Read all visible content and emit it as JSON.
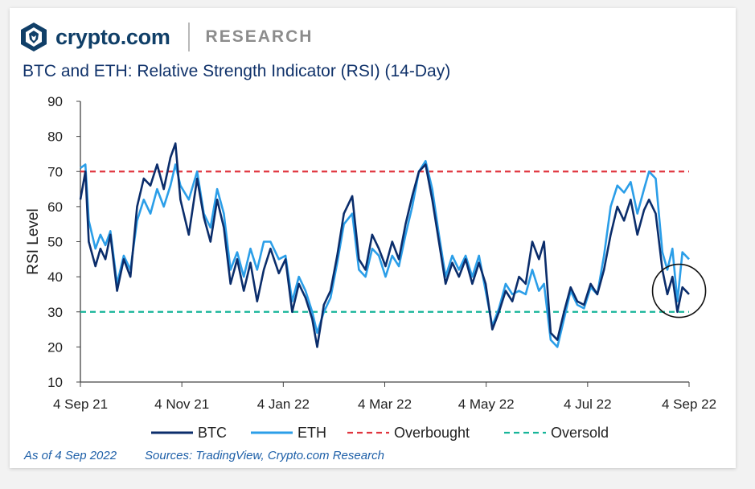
{
  "header": {
    "brand": "crypto.com",
    "section": "RESEARCH",
    "logo_icon": "crypto-com-lion-logo-icon"
  },
  "chart_data": {
    "type": "line",
    "title": "BTC and ETH: Relative Strength Indicator (RSI) (14-Day)",
    "ylabel": "RSI Level",
    "xlabel": "",
    "ylim": [
      10,
      90
    ],
    "yticks": [
      10,
      20,
      30,
      40,
      50,
      60,
      70,
      80,
      90
    ],
    "xticks": [
      "4 Sep 21",
      "4 Nov 21",
      "4 Jan 22",
      "4 Mar 22",
      "4 May 22",
      "4 Jul 22",
      "4 Sep 22"
    ],
    "x_start": "2021-09-04",
    "x_end": "2022-09-04",
    "grid": false,
    "legend_position": "bottom",
    "colors": {
      "btc": "#0b2d6b",
      "eth": "#2b9ee8",
      "overbought": "#e0353f",
      "oversold": "#17b59a",
      "axis": "#444444"
    },
    "series": [
      {
        "name": "BTC",
        "style": "solid",
        "points": [
          [
            "2021-09-04",
            62
          ],
          [
            "2021-09-07",
            70
          ],
          [
            "2021-09-09",
            50
          ],
          [
            "2021-09-13",
            43
          ],
          [
            "2021-09-16",
            48
          ],
          [
            "2021-09-19",
            45
          ],
          [
            "2021-09-22",
            52
          ],
          [
            "2021-09-26",
            36
          ],
          [
            "2021-09-30",
            45
          ],
          [
            "2021-10-04",
            40
          ],
          [
            "2021-10-08",
            60
          ],
          [
            "2021-10-12",
            68
          ],
          [
            "2021-10-16",
            66
          ],
          [
            "2021-10-20",
            72
          ],
          [
            "2021-10-24",
            65
          ],
          [
            "2021-10-28",
            74
          ],
          [
            "2021-10-31",
            78
          ],
          [
            "2021-11-03",
            62
          ],
          [
            "2021-11-08",
            52
          ],
          [
            "2021-11-13",
            68
          ],
          [
            "2021-11-17",
            57
          ],
          [
            "2021-11-21",
            50
          ],
          [
            "2021-11-25",
            62
          ],
          [
            "2021-11-29",
            54
          ],
          [
            "2021-12-03",
            38
          ],
          [
            "2021-12-07",
            45
          ],
          [
            "2021-12-11",
            36
          ],
          [
            "2021-12-15",
            44
          ],
          [
            "2021-12-19",
            33
          ],
          [
            "2021-12-23",
            42
          ],
          [
            "2021-12-27",
            48
          ],
          [
            "2022-01-01",
            41
          ],
          [
            "2022-01-05",
            45
          ],
          [
            "2022-01-09",
            30
          ],
          [
            "2022-01-13",
            38
          ],
          [
            "2022-01-17",
            34
          ],
          [
            "2022-01-21",
            28
          ],
          [
            "2022-01-24",
            20
          ],
          [
            "2022-01-28",
            32
          ],
          [
            "2022-02-01",
            36
          ],
          [
            "2022-02-05",
            46
          ],
          [
            "2022-02-09",
            58
          ],
          [
            "2022-02-14",
            63
          ],
          [
            "2022-02-18",
            45
          ],
          [
            "2022-02-22",
            42
          ],
          [
            "2022-02-26",
            52
          ],
          [
            "2022-03-02",
            48
          ],
          [
            "2022-03-06",
            43
          ],
          [
            "2022-03-10",
            50
          ],
          [
            "2022-03-14",
            45
          ],
          [
            "2022-03-18",
            55
          ],
          [
            "2022-03-22",
            63
          ],
          [
            "2022-03-26",
            70
          ],
          [
            "2022-03-30",
            72
          ],
          [
            "2022-04-03",
            62
          ],
          [
            "2022-04-07",
            50
          ],
          [
            "2022-04-11",
            38
          ],
          [
            "2022-04-15",
            44
          ],
          [
            "2022-04-19",
            40
          ],
          [
            "2022-04-23",
            45
          ],
          [
            "2022-04-27",
            38
          ],
          [
            "2022-05-01",
            44
          ],
          [
            "2022-05-05",
            38
          ],
          [
            "2022-05-09",
            25
          ],
          [
            "2022-05-13",
            30
          ],
          [
            "2022-05-17",
            36
          ],
          [
            "2022-05-21",
            33
          ],
          [
            "2022-05-25",
            40
          ],
          [
            "2022-05-29",
            38
          ],
          [
            "2022-06-02",
            50
          ],
          [
            "2022-06-06",
            45
          ],
          [
            "2022-06-09",
            50
          ],
          [
            "2022-06-13",
            24
          ],
          [
            "2022-06-17",
            22
          ],
          [
            "2022-06-21",
            30
          ],
          [
            "2022-06-25",
            37
          ],
          [
            "2022-06-29",
            33
          ],
          [
            "2022-07-03",
            32
          ],
          [
            "2022-07-07",
            38
          ],
          [
            "2022-07-11",
            35
          ],
          [
            "2022-07-15",
            42
          ],
          [
            "2022-07-19",
            52
          ],
          [
            "2022-07-23",
            60
          ],
          [
            "2022-07-27",
            56
          ],
          [
            "2022-07-31",
            62
          ],
          [
            "2022-08-04",
            52
          ],
          [
            "2022-08-08",
            59
          ],
          [
            "2022-08-11",
            62
          ],
          [
            "2022-08-15",
            58
          ],
          [
            "2022-08-19",
            42
          ],
          [
            "2022-08-22",
            35
          ],
          [
            "2022-08-25",
            40
          ],
          [
            "2022-08-28",
            30
          ],
          [
            "2022-08-31",
            37
          ],
          [
            "2022-09-04",
            35
          ]
        ]
      },
      {
        "name": "ETH",
        "style": "solid",
        "points": [
          [
            "2021-09-04",
            71
          ],
          [
            "2021-09-07",
            72
          ],
          [
            "2021-09-09",
            56
          ],
          [
            "2021-09-13",
            48
          ],
          [
            "2021-09-16",
            52
          ],
          [
            "2021-09-19",
            49
          ],
          [
            "2021-09-22",
            53
          ],
          [
            "2021-09-26",
            38
          ],
          [
            "2021-09-30",
            46
          ],
          [
            "2021-10-04",
            42
          ],
          [
            "2021-10-08",
            56
          ],
          [
            "2021-10-12",
            62
          ],
          [
            "2021-10-16",
            58
          ],
          [
            "2021-10-20",
            65
          ],
          [
            "2021-10-24",
            60
          ],
          [
            "2021-10-28",
            66
          ],
          [
            "2021-10-31",
            72
          ],
          [
            "2021-11-03",
            66
          ],
          [
            "2021-11-08",
            62
          ],
          [
            "2021-11-13",
            70
          ],
          [
            "2021-11-17",
            58
          ],
          [
            "2021-11-21",
            54
          ],
          [
            "2021-11-25",
            65
          ],
          [
            "2021-11-29",
            58
          ],
          [
            "2021-12-03",
            42
          ],
          [
            "2021-12-07",
            47
          ],
          [
            "2021-12-11",
            40
          ],
          [
            "2021-12-15",
            48
          ],
          [
            "2021-12-19",
            42
          ],
          [
            "2021-12-23",
            50
          ],
          [
            "2021-12-27",
            50
          ],
          [
            "2022-01-01",
            45
          ],
          [
            "2022-01-05",
            46
          ],
          [
            "2022-01-09",
            33
          ],
          [
            "2022-01-13",
            40
          ],
          [
            "2022-01-17",
            36
          ],
          [
            "2022-01-21",
            30
          ],
          [
            "2022-01-24",
            24
          ],
          [
            "2022-01-28",
            30
          ],
          [
            "2022-02-01",
            34
          ],
          [
            "2022-02-05",
            44
          ],
          [
            "2022-02-09",
            55
          ],
          [
            "2022-02-14",
            58
          ],
          [
            "2022-02-18",
            42
          ],
          [
            "2022-02-22",
            40
          ],
          [
            "2022-02-26",
            48
          ],
          [
            "2022-03-02",
            46
          ],
          [
            "2022-03-06",
            40
          ],
          [
            "2022-03-10",
            46
          ],
          [
            "2022-03-14",
            43
          ],
          [
            "2022-03-18",
            52
          ],
          [
            "2022-03-22",
            60
          ],
          [
            "2022-03-26",
            70
          ],
          [
            "2022-03-30",
            73
          ],
          [
            "2022-04-03",
            65
          ],
          [
            "2022-04-07",
            52
          ],
          [
            "2022-04-11",
            40
          ],
          [
            "2022-04-15",
            46
          ],
          [
            "2022-04-19",
            42
          ],
          [
            "2022-04-23",
            46
          ],
          [
            "2022-04-27",
            40
          ],
          [
            "2022-05-01",
            46
          ],
          [
            "2022-05-05",
            36
          ],
          [
            "2022-05-09",
            26
          ],
          [
            "2022-05-13",
            31
          ],
          [
            "2022-05-17",
            38
          ],
          [
            "2022-05-21",
            35
          ],
          [
            "2022-05-25",
            36
          ],
          [
            "2022-05-29",
            35
          ],
          [
            "2022-06-02",
            42
          ],
          [
            "2022-06-06",
            36
          ],
          [
            "2022-06-09",
            38
          ],
          [
            "2022-06-13",
            22
          ],
          [
            "2022-06-17",
            20
          ],
          [
            "2022-06-21",
            28
          ],
          [
            "2022-06-25",
            36
          ],
          [
            "2022-06-29",
            32
          ],
          [
            "2022-07-03",
            31
          ],
          [
            "2022-07-07",
            37
          ],
          [
            "2022-07-11",
            35
          ],
          [
            "2022-07-15",
            46
          ],
          [
            "2022-07-19",
            60
          ],
          [
            "2022-07-23",
            66
          ],
          [
            "2022-07-27",
            64
          ],
          [
            "2022-07-31",
            67
          ],
          [
            "2022-08-04",
            58
          ],
          [
            "2022-08-08",
            65
          ],
          [
            "2022-08-11",
            70
          ],
          [
            "2022-08-15",
            68
          ],
          [
            "2022-08-19",
            47
          ],
          [
            "2022-08-22",
            42
          ],
          [
            "2022-08-25",
            48
          ],
          [
            "2022-08-28",
            33
          ],
          [
            "2022-08-31",
            47
          ],
          [
            "2022-09-04",
            45
          ]
        ]
      },
      {
        "name": "Overbought",
        "style": "dashed",
        "value": 70
      },
      {
        "name": "Oversold",
        "style": "dashed",
        "value": 30
      }
    ],
    "annotations": [
      {
        "type": "circle",
        "label": "",
        "x": "2022-08-29",
        "y": 36
      }
    ]
  },
  "footer": {
    "date": "As of 4 Sep 2022",
    "sources": "Sources: TradingView, Crypto.com Research"
  }
}
